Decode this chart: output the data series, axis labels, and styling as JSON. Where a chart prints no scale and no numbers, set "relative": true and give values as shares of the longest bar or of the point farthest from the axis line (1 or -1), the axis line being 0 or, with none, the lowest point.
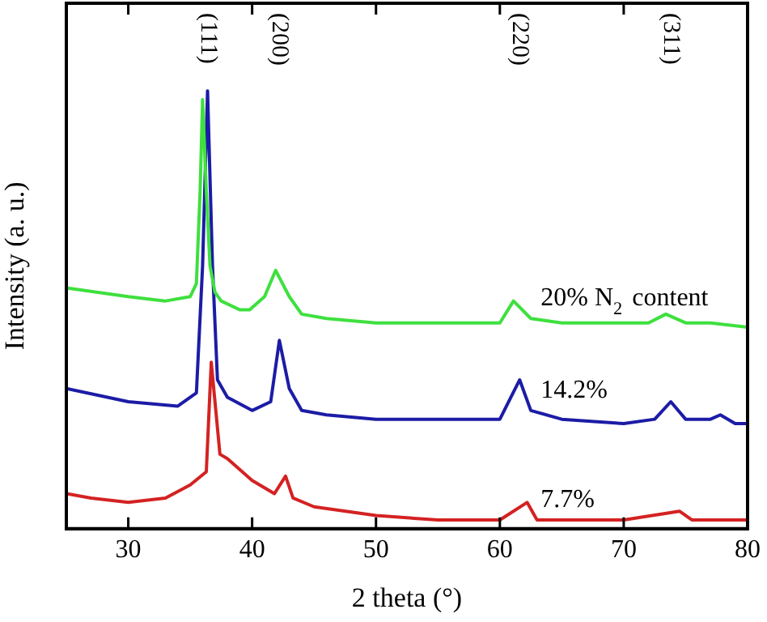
{
  "chart_data": {
    "type": "line",
    "relative": true,
    "xlabel": "2 theta (°)",
    "ylabel": "Intensity (a. u.)",
    "xlim": [
      25,
      80
    ],
    "xticks": [
      {
        "value": 25,
        "label": null
      },
      30,
      40,
      50,
      60,
      70,
      80
    ],
    "legend": false,
    "grid": false,
    "marker": "none",
    "line_style": "solid",
    "annotations": [
      "(111)",
      "(200)",
      "(220)",
      "(311)"
    ],
    "series": [
      {
        "name": "20% N$_{2}$ content",
        "color": "#3ee03e",
        "x": [
          25,
          30,
          33,
          35,
          35.5,
          35.8,
          36,
          36.3,
          36.6,
          37,
          37.5,
          39,
          39.8,
          41,
          41.9,
          43,
          44,
          46,
          50,
          55,
          60,
          61.1,
          62.5,
          65,
          70,
          72,
          73.4,
          75,
          77,
          80
        ],
        "values": [
          0.55,
          0.53,
          0.52,
          0.53,
          0.56,
          0.77,
          0.98,
          0.77,
          0.6,
          0.54,
          0.52,
          0.5,
          0.5,
          0.53,
          0.59,
          0.53,
          0.49,
          0.48,
          0.47,
          0.47,
          0.47,
          0.52,
          0.48,
          0.47,
          0.47,
          0.47,
          0.49,
          0.47,
          0.47,
          0.46
        ]
      },
      {
        "name": "14.2%",
        "color": "#1c1ca6",
        "x": [
          25,
          30,
          34,
          35.5,
          36,
          36.4,
          36.8,
          37.2,
          38,
          40,
          41.5,
          42.2,
          43,
          44,
          46,
          50,
          55,
          60,
          61.6,
          62.5,
          65,
          70,
          72.5,
          73.8,
          75,
          77,
          77.8,
          79,
          80
        ],
        "values": [
          0.32,
          0.29,
          0.28,
          0.31,
          0.6,
          1,
          0.6,
          0.34,
          0.3,
          0.27,
          0.29,
          0.43,
          0.32,
          0.27,
          0.26,
          0.25,
          0.25,
          0.25,
          0.34,
          0.27,
          0.25,
          0.24,
          0.25,
          0.29,
          0.25,
          0.25,
          0.26,
          0.24,
          0.24
        ]
      },
      {
        "name": "7.7%",
        "color": "#d42222",
        "x": [
          25,
          27,
          30,
          33,
          35,
          36.3,
          36.7,
          37.4,
          38,
          40,
          41.8,
          42.7,
          43.3,
          45,
          50,
          55,
          60,
          62.2,
          63,
          70,
          74.5,
          75.5,
          80
        ],
        "values": [
          0.08,
          0.07,
          0.06,
          0.07,
          0.1,
          0.13,
          0.38,
          0.17,
          0.16,
          0.11,
          0.08,
          0.12,
          0.07,
          0.05,
          0.03,
          0.02,
          0.02,
          0.06,
          0.02,
          0.02,
          0.04,
          0.02,
          0.02
        ]
      }
    ]
  }
}
